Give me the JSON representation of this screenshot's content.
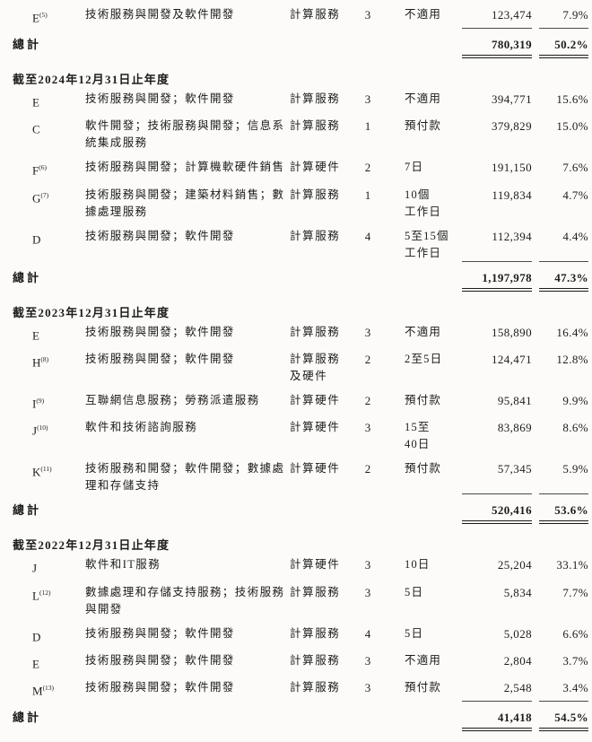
{
  "page": {
    "background_color": "#fcfbf9",
    "text_color": "#1c1c1c"
  },
  "table": {
    "sections": [
      {
        "header": "",
        "rows": [
          {
            "company": "E",
            "footnote": "(5)",
            "services": "技術服務與開發及軟件開發",
            "category": "計算服務",
            "count": "3",
            "terms": "不適用",
            "amount": "123,474",
            "percent": "7.9%",
            "ruled": true
          }
        ],
        "total": {
          "label": "總計",
          "amount": "780,319",
          "percent": "50.2%"
        }
      },
      {
        "header": "截至2024年12月31日止年度",
        "rows": [
          {
            "company": "E",
            "footnote": "",
            "services": "技術服務與開發；軟件開發",
            "category": "計算服務",
            "count": "3",
            "terms": "不適用",
            "amount": "394,771",
            "percent": "15.6%",
            "ruled": false
          },
          {
            "company": "C",
            "footnote": "",
            "services": "軟件開發；技術服務與開發；信息系統集成服務",
            "category": "計算服務",
            "count": "1",
            "terms": "預付款",
            "amount": "379,829",
            "percent": "15.0%",
            "ruled": false
          },
          {
            "company": "F",
            "footnote": "(6)",
            "services": "技術服務與開發；計算機軟硬件銷售",
            "category": "計算硬件",
            "count": "2",
            "terms": "7日",
            "amount": "191,150",
            "percent": "7.6%",
            "ruled": false
          },
          {
            "company": "G",
            "footnote": "(7)",
            "services": "技術服務與開發；建築材料銷售；數據處理服務",
            "category": "計算服務",
            "count": "1",
            "terms": "10個\n工作日",
            "amount": "119,834",
            "percent": "4.7%",
            "ruled": false
          },
          {
            "company": "D",
            "footnote": "",
            "services": "技術服務與開發；軟件開發",
            "category": "計算服務",
            "count": "4",
            "terms": "5至15個\n工作日",
            "amount": "112,394",
            "percent": "4.4%",
            "ruled": true
          }
        ],
        "total": {
          "label": "總計",
          "amount": "1,197,978",
          "percent": "47.3%"
        }
      },
      {
        "header": "截至2023年12月31日止年度",
        "rows": [
          {
            "company": "E",
            "footnote": "",
            "services": "技術服務與開發；軟件開發",
            "category": "計算服務",
            "count": "3",
            "terms": "不適用",
            "amount": "158,890",
            "percent": "16.4%",
            "ruled": false
          },
          {
            "company": "H",
            "footnote": "(8)",
            "services": "技術服務與開發；軟件開發",
            "category": "計算服務\n及硬件",
            "count": "2",
            "terms": "2至5日",
            "amount": "124,471",
            "percent": "12.8%",
            "ruled": false
          },
          {
            "company": "I",
            "footnote": "(9)",
            "services": "互聯網信息服務；勞務派遣服務",
            "category": "計算硬件",
            "count": "2",
            "terms": "預付款",
            "amount": "95,841",
            "percent": "9.9%",
            "ruled": false
          },
          {
            "company": "J",
            "footnote": "(10)",
            "services": "軟件和技術諮詢服務",
            "category": "計算硬件",
            "count": "3",
            "terms": "15至\n40日",
            "amount": "83,869",
            "percent": "8.6%",
            "ruled": false
          },
          {
            "company": "K",
            "footnote": "(11)",
            "services": "技術服務和開發；軟件開發；數據處理和存儲支持",
            "category": "計算硬件",
            "count": "2",
            "terms": "預付款",
            "amount": "57,345",
            "percent": "5.9%",
            "ruled": true
          }
        ],
        "total": {
          "label": "總計",
          "amount": "520,416",
          "percent": "53.6%"
        }
      },
      {
        "header": "截至2022年12月31日止年度",
        "rows": [
          {
            "company": "J",
            "footnote": "",
            "services": "軟件和IT服務",
            "category": "計算硬件",
            "count": "3",
            "terms": "10日",
            "amount": "25,204",
            "percent": "33.1%",
            "ruled": false
          },
          {
            "company": "L",
            "footnote": "(12)",
            "services": "數據處理和存儲支持服務；技術服務與開發",
            "category": "計算服務",
            "count": "3",
            "terms": "5日",
            "amount": "5,834",
            "percent": "7.7%",
            "ruled": false
          },
          {
            "company": "D",
            "footnote": "",
            "services": "技術服務與開發；軟件開發",
            "category": "計算服務",
            "count": "4",
            "terms": "5日",
            "amount": "5,028",
            "percent": "6.6%",
            "ruled": false
          },
          {
            "company": "E",
            "footnote": "",
            "services": "技術服務與開發；軟件開發",
            "category": "計算服務",
            "count": "3",
            "terms": "不適用",
            "amount": "2,804",
            "percent": "3.7%",
            "ruled": false
          },
          {
            "company": "M",
            "footnote": "(13)",
            "services": "技術服務與開發；軟件開發",
            "category": "計算服務",
            "count": "3",
            "terms": "預付款",
            "amount": "2,548",
            "percent": "3.4%",
            "ruled": true
          }
        ],
        "total": {
          "label": "總計",
          "amount": "41,418",
          "percent": "54.5%"
        }
      }
    ]
  }
}
